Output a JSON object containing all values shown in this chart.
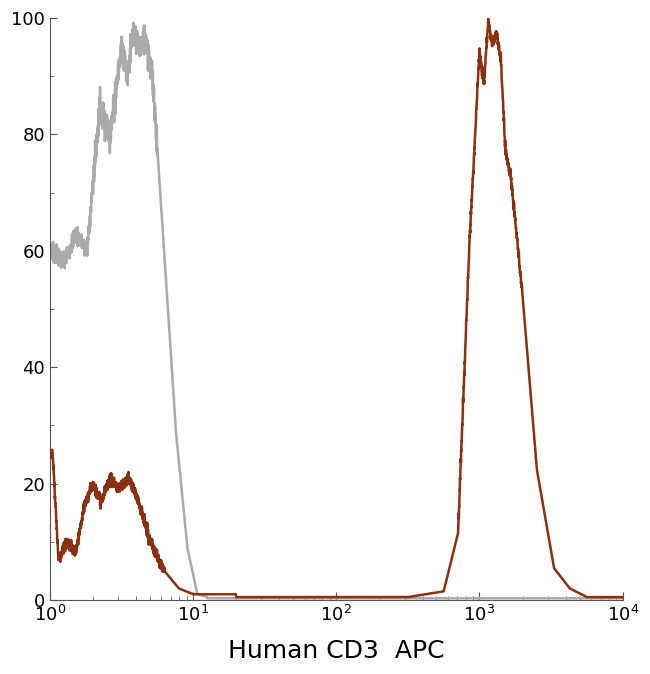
{
  "title": "",
  "xlabel": "Human CD3  APC",
  "ylabel": "",
  "xlim_log": [
    0,
    4
  ],
  "ylim": [
    0,
    100
  ],
  "background_color": "#ffffff",
  "plot_bg_color": "#ffffff",
  "gray_color": "#aaaaaa",
  "brown_color": "#8B3010",
  "linewidth": 1.8,
  "xlabel_fontsize": 18,
  "ytick_labels": [
    "0",
    "20",
    "40",
    "60",
    "80",
    "100"
  ],
  "ytick_values": [
    0,
    20,
    40,
    60,
    80,
    100
  ]
}
